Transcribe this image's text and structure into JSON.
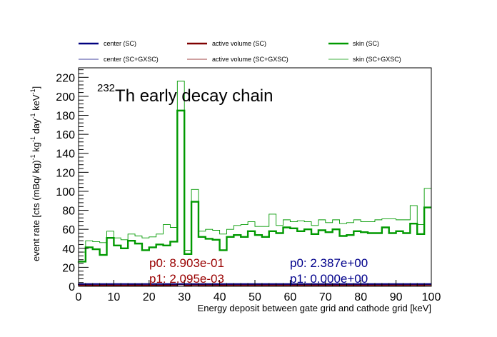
{
  "legend": {
    "entries": [
      {
        "label": "center (SC)",
        "color": "#00007f",
        "width": 2.4
      },
      {
        "label": "active volume (SC)",
        "color": "#7f0000",
        "width": 2.4
      },
      {
        "label": "skin (SC)",
        "color": "#009900",
        "width": 2.4
      },
      {
        "label": "center (SC+GXSC)",
        "color": "#00007f",
        "width": 0.8
      },
      {
        "label": "active volume (SC+GXSC)",
        "color": "#7f0000",
        "width": 0.8
      },
      {
        "label": "skin (SC+GXSC)",
        "color": "#009900",
        "width": 0.8
      }
    ]
  },
  "fit_params": {
    "left": {
      "p0": "p0: 8.903e-01",
      "p1": "p1: 2.095e-03",
      "color": "#990000"
    },
    "right": {
      "p0": "p0: 2.387e+00",
      "p1": "p1: 0.000e+00",
      "color": "#00008b"
    }
  },
  "chart_data": {
    "type": "line",
    "title_sup": "232",
    "title": "Th early decay chain",
    "xlabel": "Energy deposit between gate grid and cathode grid [keV]",
    "ylabel": "event rate [cts (mBq/ kg)",
    "ylabel_sup1": "-1",
    "ylabel_mid1": " kg",
    "ylabel_sup2": "-1",
    "ylabel_mid2": " day",
    "ylabel_sup3": "-1",
    "ylabel_mid3": " keV",
    "ylabel_sup4": "-1",
    "ylabel_end": "]",
    "xlim": [
      0,
      100
    ],
    "ylim": [
      0,
      230
    ],
    "x_ticks": [
      "0",
      "10",
      "20",
      "30",
      "40",
      "50",
      "60",
      "70",
      "80",
      "90",
      "100"
    ],
    "y_ticks": [
      "0",
      "20",
      "40",
      "60",
      "80",
      "100",
      "120",
      "140",
      "160",
      "180",
      "200",
      "220"
    ],
    "bin_width": 2,
    "series": [
      {
        "name": "skin (SC)",
        "color": "#009900",
        "width": 2.4,
        "values": [
          26,
          41,
          39,
          33,
          51,
          43,
          40,
          48,
          45,
          38,
          41,
          44,
          43,
          47,
          185,
          34,
          89,
          52,
          50,
          49,
          38,
          52,
          54,
          52,
          58,
          54,
          52,
          58,
          56,
          62,
          61,
          58,
          60,
          55,
          59,
          57,
          60,
          53,
          54,
          58,
          57,
          56,
          56,
          62,
          56,
          58,
          56,
          66,
          55,
          83
        ]
      },
      {
        "name": "skin (SC+GXSC)",
        "color": "#009900",
        "width": 0.9,
        "values": [
          36,
          48,
          47,
          46,
          58,
          51,
          49,
          55,
          53,
          51,
          52,
          55,
          65,
          62,
          216,
          38,
          102,
          58,
          60,
          59,
          55,
          60,
          64,
          65,
          68,
          63,
          63,
          76,
          64,
          70,
          68,
          69,
          68,
          64,
          70,
          67,
          70,
          66,
          67,
          70,
          68,
          68,
          70,
          71,
          71,
          70,
          70,
          85,
          65,
          103
        ]
      },
      {
        "name": "active volume (SC)",
        "color": "#7f0000",
        "width": 2,
        "values": [
          1.2,
          1.1,
          1.0,
          1.1,
          1.1,
          1.0,
          1.0,
          1.1,
          1.1,
          1.0,
          1.0,
          1.0,
          1.1,
          1.2,
          2.0,
          1.0,
          1.4,
          1.2,
          1.2,
          1.2,
          1.1,
          1.2,
          1.2,
          1.2,
          1.2,
          1.2,
          1.2,
          1.2,
          1.2,
          1.2,
          1.2,
          1.2,
          1.2,
          1.2,
          1.2,
          1.2,
          1.2,
          1.2,
          1.2,
          1.2,
          1.2,
          1.2,
          1.2,
          1.2,
          1.2,
          1.2,
          1.2,
          1.3,
          1.2,
          1.4
        ]
      },
      {
        "name": "center (SC)",
        "color": "#00007f",
        "width": 2,
        "values": [
          2.4,
          2.4,
          2.4,
          2.4,
          2.4,
          2.4,
          2.4,
          2.4,
          2.4,
          2.4,
          2.4,
          2.4,
          2.4,
          2.4,
          2.4,
          2.4,
          2.4,
          2.4,
          2.4,
          2.4,
          2.4,
          2.4,
          2.4,
          2.4,
          2.4,
          2.4,
          2.4,
          2.4,
          2.4,
          2.4,
          2.4,
          2.4,
          2.4,
          2.4,
          2.4,
          2.4,
          2.4,
          2.4,
          2.4,
          2.4,
          2.4,
          2.4,
          2.4,
          2.4,
          2.4,
          2.4,
          2.4,
          2.4,
          2.4,
          2.4
        ]
      }
    ],
    "grid": false,
    "legend_position": "top"
  }
}
